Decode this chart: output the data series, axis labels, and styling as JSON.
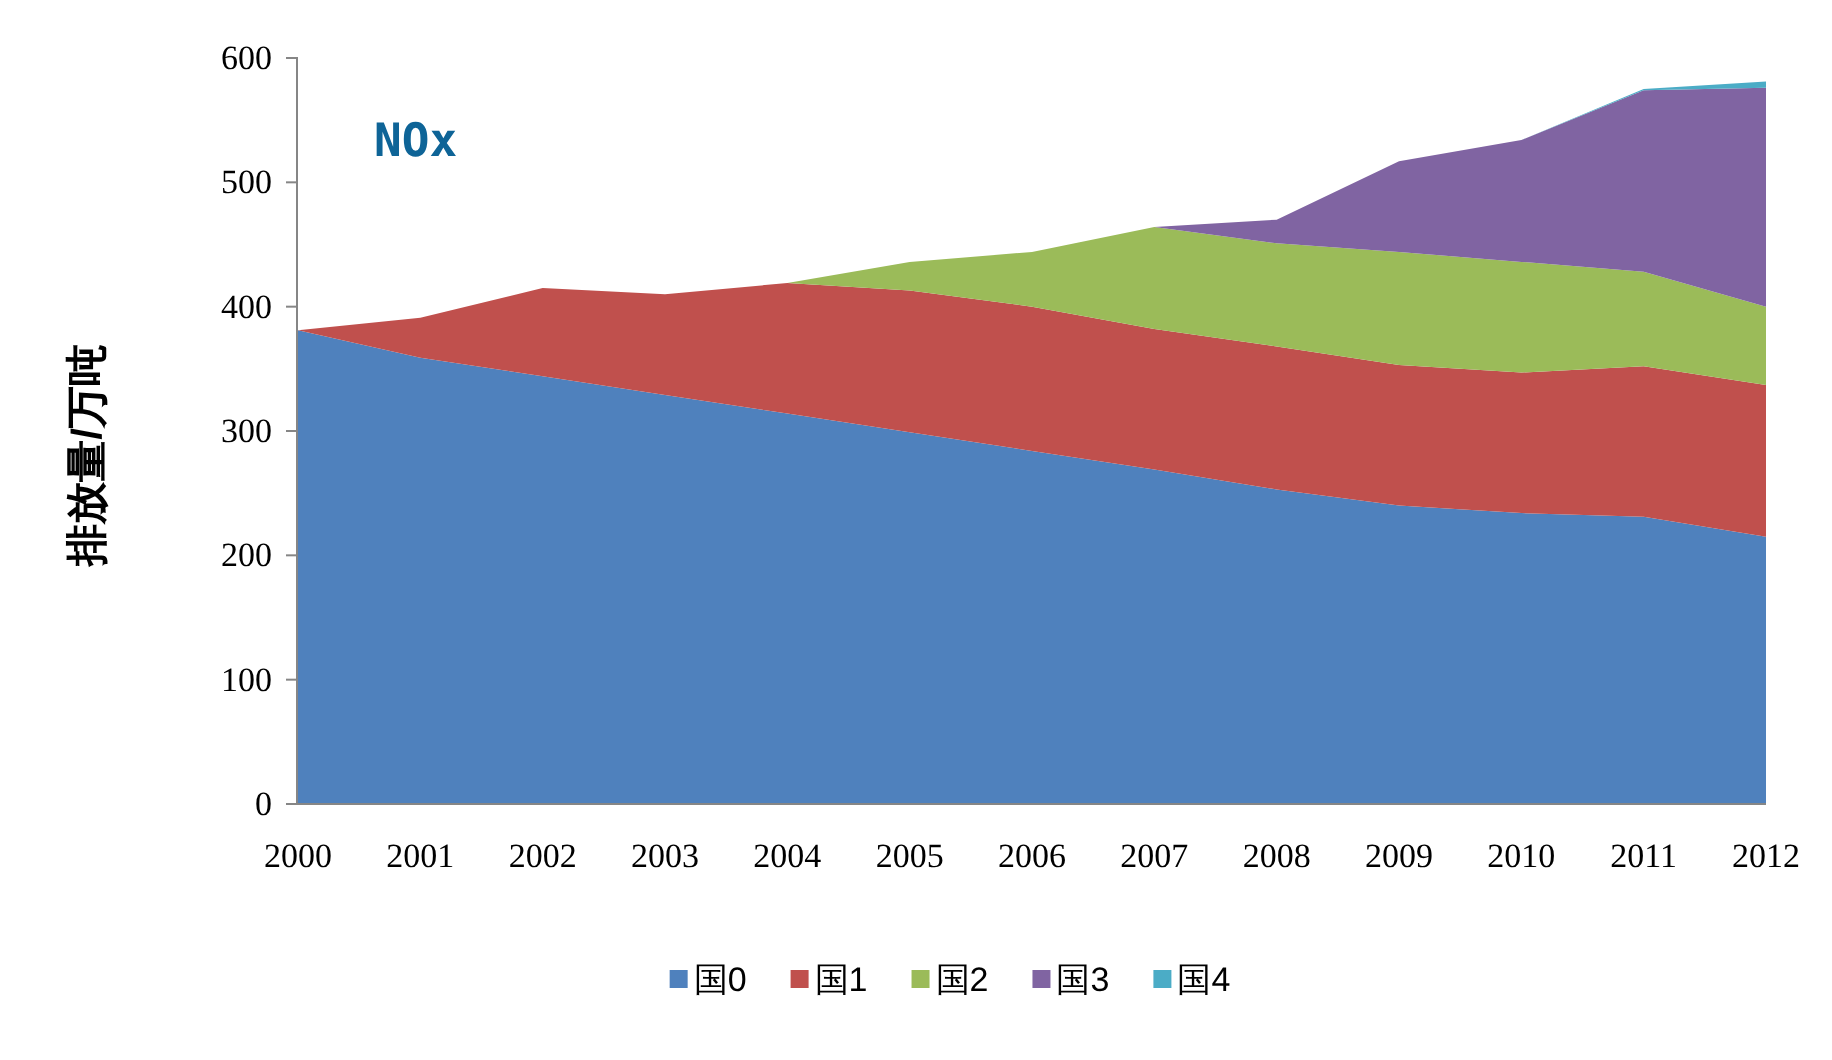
{
  "chart_data": {
    "type": "area",
    "title": "NOx",
    "ylabel": "排放量/万吨",
    "stacked": true,
    "legend": "bottom",
    "categories": [
      "2000",
      "2001",
      "2002",
      "2003",
      "2004",
      "2005",
      "2006",
      "2007",
      "2008",
      "2009",
      "2010",
      "2011",
      "2012"
    ],
    "ylim": [
      0,
      600
    ],
    "yticks": [
      0,
      100,
      200,
      300,
      400,
      500,
      600
    ],
    "series": [
      {
        "name": "国0",
        "color": "#4f81bd",
        "values": [
          381,
          359,
          344,
          329,
          314,
          299,
          284,
          269,
          253,
          240,
          234,
          231,
          215
        ]
      },
      {
        "name": "国1",
        "color": "#c0504d",
        "values": [
          0,
          32,
          71,
          81,
          105,
          114,
          116,
          113,
          115,
          113,
          113,
          121,
          122
        ]
      },
      {
        "name": "国2",
        "color": "#9bbb59",
        "values": [
          0,
          0,
          0,
          0,
          0,
          23,
          44,
          82,
          83,
          91,
          89,
          76,
          63
        ]
      },
      {
        "name": "国3",
        "color": "#8064a2",
        "values": [
          0,
          0,
          0,
          0,
          0,
          0,
          0,
          0,
          19,
          73,
          98,
          146,
          176
        ]
      },
      {
        "name": "国4",
        "color": "#4bacc6",
        "values": [
          0,
          0,
          0,
          0,
          0,
          0,
          0,
          0,
          0,
          0,
          0,
          1,
          5
        ]
      }
    ]
  }
}
